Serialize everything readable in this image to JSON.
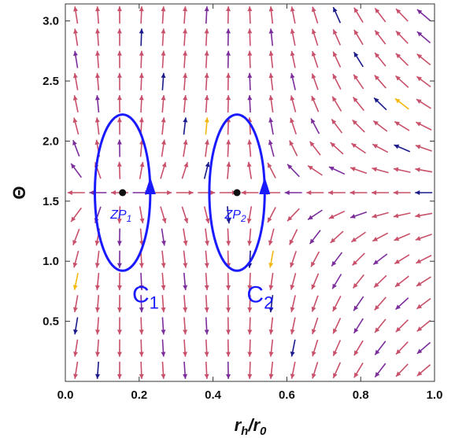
{
  "chart_data": {
    "type": "vector-field",
    "xlabel_main": "r",
    "xlabel_sub": "h",
    "xlabel_div": "/r",
    "xlabel_div_sub": "0",
    "ylabel": "Θ",
    "xlim": [
      0,
      1
    ],
    "ylim": [
      0,
      3.14159
    ],
    "xticks": [
      "0.0",
      "0.2",
      "0.4",
      "0.6",
      "0.8",
      "1.0"
    ],
    "xtick_values": [
      0,
      0.2,
      0.4,
      0.6,
      0.8,
      1.0
    ],
    "yticks": [
      "0.5",
      "1.0",
      "1.5",
      "2.0",
      "2.5",
      "3.0"
    ],
    "ytick_values": [
      0.5,
      1.0,
      1.5,
      2.0,
      2.5,
      3.0
    ],
    "zero_points": [
      {
        "label": "ZP",
        "sub": "1",
        "x": 0.155,
        "y": 1.5708
      },
      {
        "label": "ZP",
        "sub": "2",
        "x": 0.465,
        "y": 1.5708
      }
    ],
    "contours": [
      {
        "label": "C",
        "sub": "1",
        "cx": 0.155,
        "cy": 1.5708,
        "rx": 0.075,
        "ry": 0.65
      },
      {
        "label": "C",
        "sub": "2",
        "cx": 0.465,
        "cy": 1.5708,
        "rx": 0.075,
        "ry": 0.65
      }
    ],
    "arrow_colors": [
      "#c8506a",
      "#7b2d9b",
      "#1a1a8a",
      "#f5b80f"
    ],
    "curve_color": "#1a1aff"
  }
}
